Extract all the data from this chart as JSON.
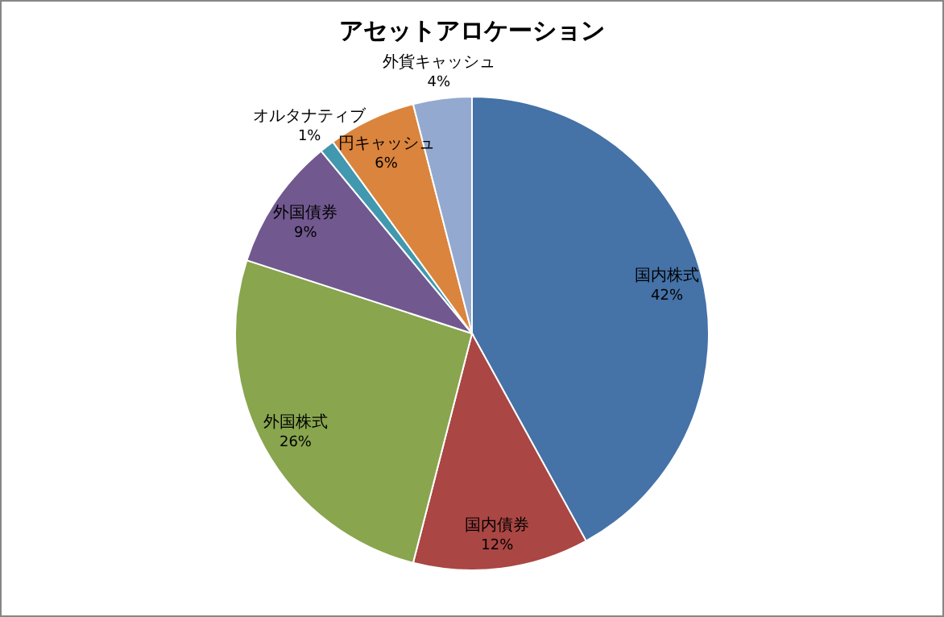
{
  "chart_data": {
    "type": "pie",
    "title": "アセットアロケーション",
    "categories": [
      "国内株式",
      "国内債券",
      "外国株式",
      "外国債券",
      "オルタナティブ",
      "円キャッシュ",
      "外貨キャッシュ"
    ],
    "values": [
      42,
      12,
      26,
      9,
      1,
      6,
      4
    ],
    "value_labels": [
      "42%",
      "12%",
      "26%",
      "9%",
      "1%",
      "6%",
      "4%"
    ],
    "colors": [
      "#4572a7",
      "#aa4643",
      "#89a54e",
      "#71588f",
      "#4198af",
      "#db843d",
      "#93a9cf"
    ],
    "legend": false
  }
}
